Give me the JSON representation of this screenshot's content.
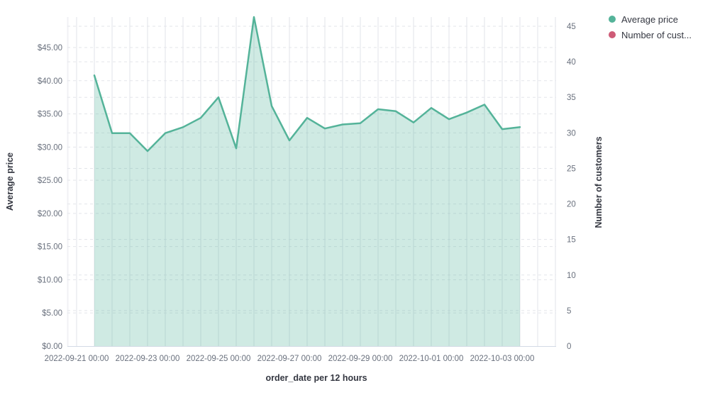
{
  "chart_data": {
    "type": "area",
    "title": "",
    "xlabel": "order_date per 12 hours",
    "ylabel_left": "Average price",
    "ylabel_right": "Number of customers",
    "x_tick_labels": [
      "2022-09-21 00:00",
      "2022-09-23 00:00",
      "2022-09-25 00:00",
      "2022-09-27 00:00",
      "2022-09-29 00:00",
      "2022-10-01 00:00",
      "2022-10-03 00:00"
    ],
    "y_left_tick_labels": [
      "$0.00",
      "$5.00",
      "$10.00",
      "$15.00",
      "$20.00",
      "$25.00",
      "$30.00",
      "$35.00",
      "$40.00",
      "$45.00"
    ],
    "y_right_tick_labels": [
      "0",
      "5",
      "10",
      "15",
      "20",
      "25",
      "30",
      "35",
      "40",
      "45"
    ],
    "y_left_range": [
      0,
      49.6
    ],
    "y_right_range": [
      0,
      46.3
    ],
    "grid": {
      "horizontal": "dashed-both-axes",
      "vertical": "solid-every-12h"
    },
    "legend_position": "top-right",
    "x": [
      "2022-09-21 12:00",
      "2022-09-22 00:00",
      "2022-09-22 12:00",
      "2022-09-23 00:00",
      "2022-09-23 12:00",
      "2022-09-24 00:00",
      "2022-09-24 12:00",
      "2022-09-25 00:00",
      "2022-09-25 12:00",
      "2022-09-26 00:00",
      "2022-09-26 12:00",
      "2022-09-27 00:00",
      "2022-09-27 12:00",
      "2022-09-28 00:00",
      "2022-09-28 12:00",
      "2022-09-29 00:00",
      "2022-09-29 12:00",
      "2022-09-30 00:00",
      "2022-09-30 12:00",
      "2022-10-01 00:00",
      "2022-10-01 12:00",
      "2022-10-02 00:00",
      "2022-10-02 12:00",
      "2022-10-03 00:00",
      "2022-10-03 12:00"
    ],
    "series": [
      {
        "name": "Average price",
        "axis": "left",
        "type": "area",
        "color": "#54B399",
        "fill_opacity": 0.28,
        "values": [
          40.8,
          32.1,
          32.1,
          29.4,
          32.1,
          33.0,
          34.4,
          37.5,
          29.8,
          49.6,
          36.2,
          31.0,
          34.4,
          32.8,
          33.4,
          33.6,
          35.7,
          35.4,
          33.7,
          35.9,
          34.2,
          35.2,
          36.4,
          32.7,
          33.0
        ]
      },
      {
        "name": "Number of customers",
        "axis": "right",
        "type": "line",
        "color": "#CE5B77",
        "values": []
      }
    ]
  },
  "legend": {
    "items": [
      {
        "label": "Average price",
        "color": "#54B399"
      },
      {
        "label": "Number of cust...",
        "color": "#CE5B77"
      }
    ]
  },
  "colors": {
    "line": "#54B399",
    "fill": "rgba(84,179,153,0.28)",
    "grid_vertical": "#F0F1F4",
    "grid_dashed": "#E3E5EA",
    "axis_line": "#D3DAE6",
    "tick_label": "#69707D",
    "title_text": "#343741"
  }
}
